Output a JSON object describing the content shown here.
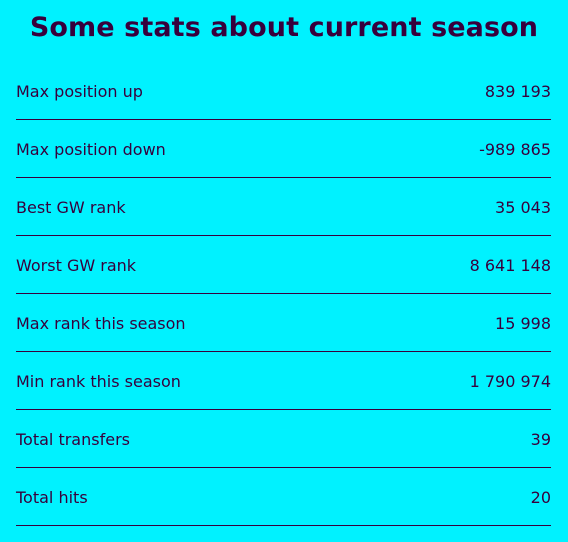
{
  "title": "Some stats about current season",
  "colors": {
    "background": "#00F2FF",
    "text": "#37003C",
    "divider": "#37003C"
  },
  "stats": [
    {
      "label": "Max position up",
      "value": "839 193"
    },
    {
      "label": "Max position down",
      "value": "-989 865"
    },
    {
      "label": "Best GW rank",
      "value": "35 043"
    },
    {
      "label": "Worst GW rank",
      "value": "8 641 148"
    },
    {
      "label": "Max rank this season",
      "value": "15 998"
    },
    {
      "label": "Min rank this season",
      "value": "1 790 974"
    },
    {
      "label": "Total transfers",
      "value": "39"
    },
    {
      "label": "Total hits",
      "value": "20"
    }
  ]
}
